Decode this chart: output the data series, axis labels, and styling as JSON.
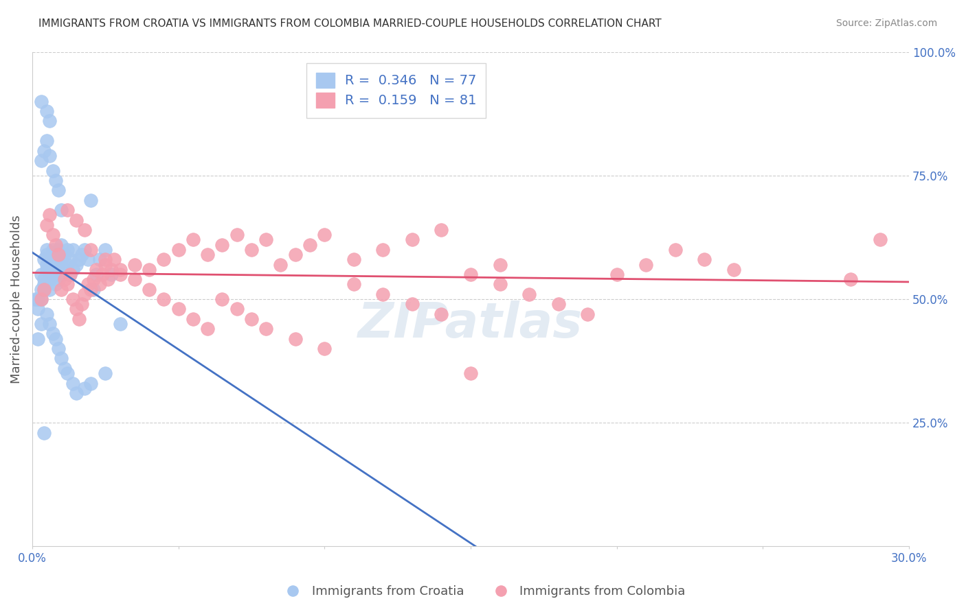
{
  "title": "IMMIGRANTS FROM CROATIA VS IMMIGRANTS FROM COLOMBIA MARRIED-COUPLE HOUSEHOLDS CORRELATION CHART",
  "source": "Source: ZipAtlas.com",
  "xlabel_bottom": "",
  "ylabel": "Married-couple Households",
  "xaxis_label_bottom": "",
  "xlim": [
    0.0,
    0.3
  ],
  "ylim": [
    0.0,
    1.0
  ],
  "xticks": [
    0.0,
    0.05,
    0.1,
    0.15,
    0.2,
    0.25,
    0.3
  ],
  "xticklabels": [
    "0.0%",
    "",
    "",
    "",
    "",
    "",
    "30.0%"
  ],
  "yticks_right": [
    0.0,
    0.25,
    0.5,
    0.75,
    1.0
  ],
  "yticklabels_right": [
    "",
    "25.0%",
    "50.0%",
    "75.0%",
    "100.0%"
  ],
  "legend_R_croatia": "0.346",
  "legend_N_croatia": "77",
  "legend_R_colombia": "0.159",
  "legend_N_colombia": "81",
  "color_croatia": "#a8c8f0",
  "color_colombia": "#f4a0b0",
  "color_croatia_line": "#4472c4",
  "color_colombia_line": "#e05070",
  "color_text_blue": "#4472c4",
  "color_axis": "#cccccc",
  "color_grid": "#cccccc",
  "watermark": "ZIPatlas",
  "background_color": "#ffffff",
  "croatia_scatter_x": [
    0.002,
    0.003,
    0.003,
    0.004,
    0.004,
    0.004,
    0.005,
    0.005,
    0.005,
    0.005,
    0.006,
    0.006,
    0.006,
    0.006,
    0.007,
    0.007,
    0.007,
    0.008,
    0.008,
    0.008,
    0.009,
    0.009,
    0.009,
    0.01,
    0.01,
    0.01,
    0.011,
    0.011,
    0.012,
    0.012,
    0.013,
    0.013,
    0.014,
    0.014,
    0.015,
    0.016,
    0.017,
    0.018,
    0.019,
    0.02,
    0.021,
    0.022,
    0.023,
    0.025,
    0.027,
    0.03,
    0.003,
    0.004,
    0.005,
    0.006,
    0.007,
    0.008,
    0.009,
    0.01,
    0.002,
    0.003,
    0.004,
    0.005,
    0.006,
    0.007,
    0.008,
    0.009,
    0.01,
    0.011,
    0.012,
    0.014,
    0.015,
    0.018,
    0.02,
    0.025,
    0.003,
    0.005,
    0.006,
    0.004,
    0.003,
    0.002,
    0.001
  ],
  "croatia_scatter_y": [
    0.5,
    0.55,
    0.52,
    0.53,
    0.54,
    0.58,
    0.56,
    0.57,
    0.59,
    0.6,
    0.52,
    0.54,
    0.57,
    0.58,
    0.55,
    0.56,
    0.6,
    0.53,
    0.55,
    0.58,
    0.54,
    0.57,
    0.6,
    0.55,
    0.58,
    0.61,
    0.56,
    0.59,
    0.57,
    0.6,
    0.55,
    0.58,
    0.56,
    0.6,
    0.57,
    0.58,
    0.59,
    0.6,
    0.58,
    0.7,
    0.52,
    0.55,
    0.58,
    0.6,
    0.55,
    0.45,
    0.78,
    0.8,
    0.82,
    0.79,
    0.76,
    0.74,
    0.72,
    0.68,
    0.48,
    0.5,
    0.52,
    0.47,
    0.45,
    0.43,
    0.42,
    0.4,
    0.38,
    0.36,
    0.35,
    0.33,
    0.31,
    0.32,
    0.33,
    0.35,
    0.9,
    0.88,
    0.86,
    0.23,
    0.45,
    0.42,
    0.5
  ],
  "colombia_scatter_x": [
    0.01,
    0.011,
    0.012,
    0.013,
    0.014,
    0.015,
    0.016,
    0.017,
    0.018,
    0.019,
    0.02,
    0.021,
    0.022,
    0.023,
    0.024,
    0.025,
    0.026,
    0.027,
    0.028,
    0.03,
    0.035,
    0.04,
    0.045,
    0.05,
    0.055,
    0.06,
    0.065,
    0.07,
    0.075,
    0.08,
    0.085,
    0.09,
    0.095,
    0.1,
    0.11,
    0.12,
    0.13,
    0.14,
    0.15,
    0.16,
    0.005,
    0.006,
    0.007,
    0.008,
    0.009,
    0.003,
    0.004,
    0.012,
    0.015,
    0.018,
    0.02,
    0.025,
    0.03,
    0.035,
    0.04,
    0.045,
    0.05,
    0.055,
    0.06,
    0.065,
    0.07,
    0.075,
    0.08,
    0.09,
    0.1,
    0.11,
    0.12,
    0.13,
    0.14,
    0.15,
    0.16,
    0.17,
    0.18,
    0.19,
    0.2,
    0.21,
    0.22,
    0.23,
    0.24,
    0.28,
    0.29
  ],
  "colombia_scatter_y": [
    0.52,
    0.54,
    0.53,
    0.55,
    0.5,
    0.48,
    0.46,
    0.49,
    0.51,
    0.53,
    0.52,
    0.54,
    0.56,
    0.53,
    0.55,
    0.57,
    0.54,
    0.56,
    0.58,
    0.55,
    0.57,
    0.56,
    0.58,
    0.6,
    0.62,
    0.59,
    0.61,
    0.63,
    0.6,
    0.62,
    0.57,
    0.59,
    0.61,
    0.63,
    0.58,
    0.6,
    0.62,
    0.64,
    0.55,
    0.57,
    0.65,
    0.67,
    0.63,
    0.61,
    0.59,
    0.5,
    0.52,
    0.68,
    0.66,
    0.64,
    0.6,
    0.58,
    0.56,
    0.54,
    0.52,
    0.5,
    0.48,
    0.46,
    0.44,
    0.5,
    0.48,
    0.46,
    0.44,
    0.42,
    0.4,
    0.53,
    0.51,
    0.49,
    0.47,
    0.35,
    0.53,
    0.51,
    0.49,
    0.47,
    0.55,
    0.57,
    0.6,
    0.58,
    0.56,
    0.54,
    0.62
  ]
}
